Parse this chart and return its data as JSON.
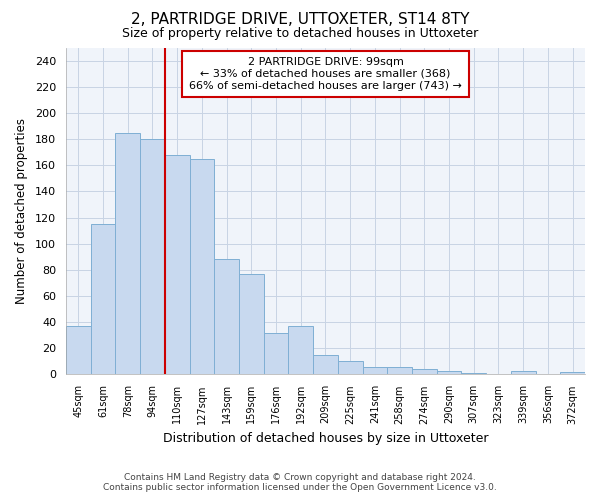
{
  "title": "2, PARTRIDGE DRIVE, UTTOXETER, ST14 8TY",
  "subtitle": "Size of property relative to detached houses in Uttoxeter",
  "xlabel": "Distribution of detached houses by size in Uttoxeter",
  "ylabel": "Number of detached properties",
  "categories": [
    "45sqm",
    "61sqm",
    "78sqm",
    "94sqm",
    "110sqm",
    "127sqm",
    "143sqm",
    "159sqm",
    "176sqm",
    "192sqm",
    "209sqm",
    "225sqm",
    "241sqm",
    "258sqm",
    "274sqm",
    "290sqm",
    "307sqm",
    "323sqm",
    "339sqm",
    "356sqm",
    "372sqm"
  ],
  "values": [
    37,
    115,
    185,
    180,
    168,
    165,
    88,
    77,
    32,
    37,
    15,
    10,
    6,
    6,
    4,
    3,
    1,
    0,
    3,
    0,
    2
  ],
  "bar_color": "#c8d9ef",
  "bar_edge_color": "#7fafd4",
  "vline_x_index": 3,
  "vline_color": "#cc0000",
  "annotation_title": "2 PARTRIDGE DRIVE: 99sqm",
  "annotation_line1": "← 33% of detached houses are smaller (368)",
  "annotation_line2": "66% of semi-detached houses are larger (743) →",
  "annotation_box_color": "#cc0000",
  "ylim": [
    0,
    250
  ],
  "yticks": [
    0,
    20,
    40,
    60,
    80,
    100,
    120,
    140,
    160,
    180,
    200,
    220,
    240
  ],
  "footnote1": "Contains HM Land Registry data © Crown copyright and database right 2024.",
  "footnote2": "Contains public sector information licensed under the Open Government Licence v3.0.",
  "background_color": "#ffffff",
  "plot_bg_color": "#f0f4fa",
  "grid_color": "#c8d4e4"
}
